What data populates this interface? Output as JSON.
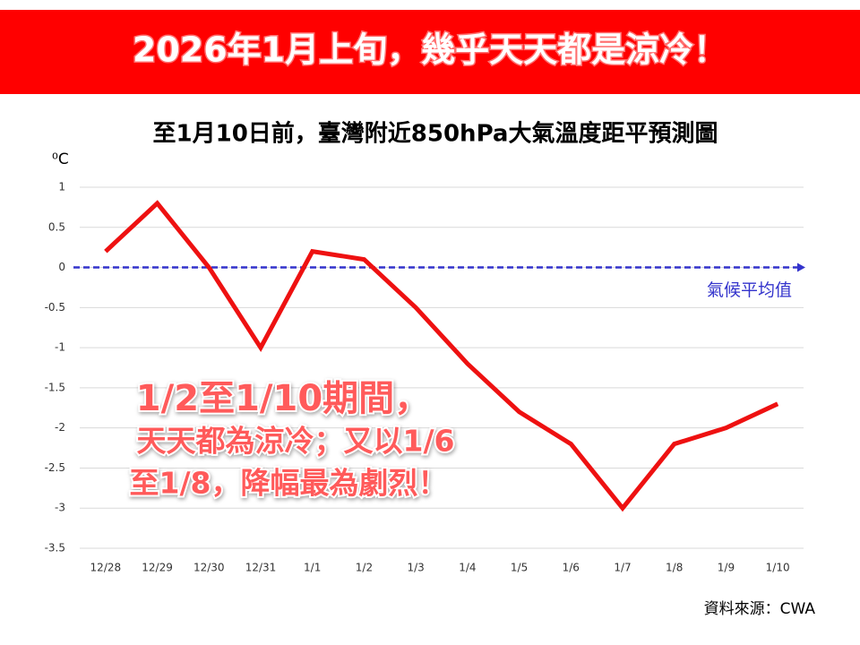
{
  "header": {
    "title": "2026年1月上旬，幾乎天天都是涼冷！"
  },
  "chart_data": {
    "type": "line",
    "title": "至1月10日前，臺灣附近850hPa大氣溫度距平預測圖",
    "y_label": "⁰C",
    "categories": [
      "12/28",
      "12/29",
      "12/30",
      "12/31",
      "1/1",
      "1/2",
      "1/3",
      "1/4",
      "1/5",
      "1/6",
      "1/7",
      "1/8",
      "1/9",
      "1/10"
    ],
    "values": [
      0.2,
      0.8,
      0,
      -1,
      0.2,
      0.1,
      -0.5,
      -1.2,
      -1.8,
      -2.2,
      -3,
      -2.2,
      -2,
      -1.7
    ],
    "color": "#ee1111",
    "ylim": [
      -3.5,
      1
    ],
    "yticks": [
      1,
      0.5,
      0,
      -0.5,
      -1,
      -1.5,
      -2,
      -2.5,
      -3,
      -3.5
    ],
    "grid": true,
    "reference_line": {
      "value": 0,
      "label": "氣候平均值",
      "color": "#3333cc"
    },
    "annotations": [
      "1/2至1/10期間，",
      "天天都為涼冷；又以1/6",
      "至1/8，降幅最為劇烈！"
    ]
  },
  "source": "資料來源：CWA"
}
